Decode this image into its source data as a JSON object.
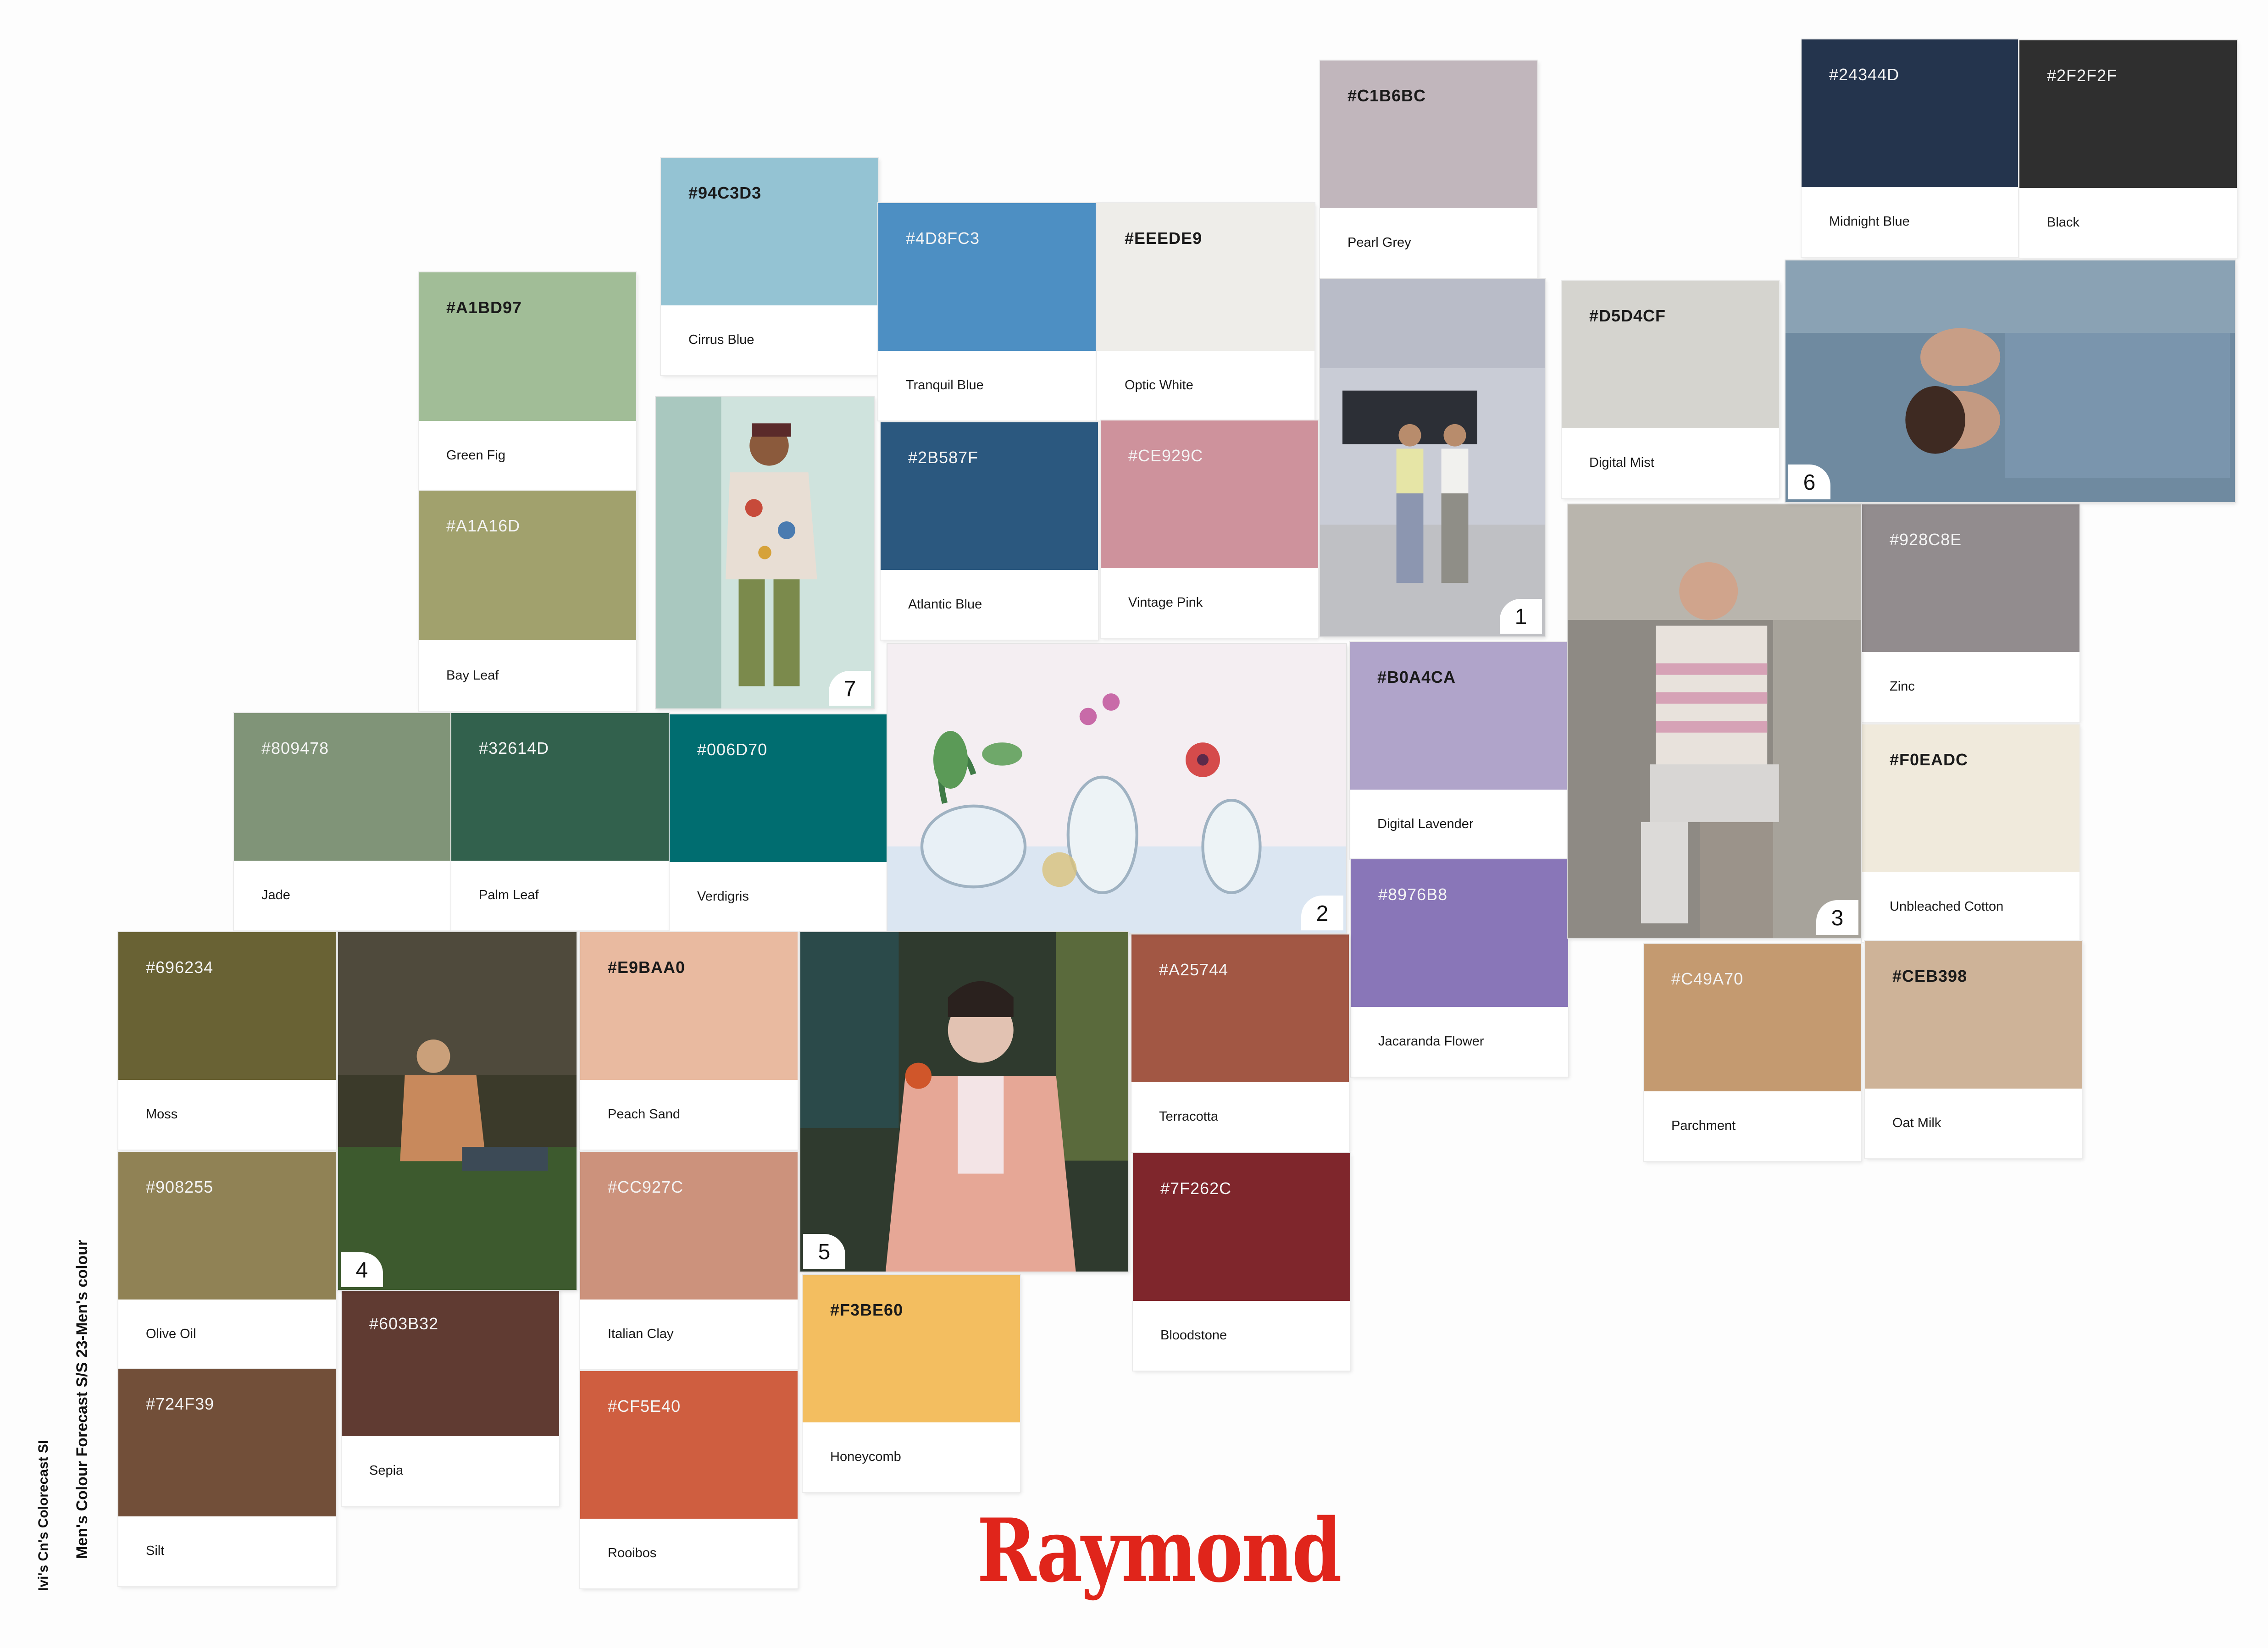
{
  "brand": {
    "logo_text": "Raymond",
    "color": "#E0251B"
  },
  "side_captions": [
    "Men's Colour Forecast S/S 23-Men's colour",
    "Ivi's Cn's Colorecast SI"
  ],
  "swatches": [
    {
      "hex": "#A1BD97",
      "name": "Green Fig",
      "text": "dark"
    },
    {
      "hex": "#A1A16D",
      "name": "Bay Leaf",
      "text": "light"
    },
    {
      "hex": "#94C3D3",
      "name": "Cirrus Blue",
      "text": "dark"
    },
    {
      "hex": "#4D8FC3",
      "name": "Tranquil Blue",
      "text": "light"
    },
    {
      "hex": "#EEEDE9",
      "name": "Optic White",
      "text": "dark"
    },
    {
      "hex": "#C1B6BC",
      "name": "Pearl Grey",
      "text": "dark"
    },
    {
      "hex": "#24344D",
      "name": "Midnight Blue",
      "text": "light"
    },
    {
      "hex": "#2F2F2F",
      "name": "Black",
      "text": "light"
    },
    {
      "hex": "#2B587F",
      "name": "Atlantic Blue",
      "text": "light"
    },
    {
      "hex": "#CE929C",
      "name": "Vintage Pink",
      "text": "light"
    },
    {
      "hex": "#D5D4CF",
      "name": "Digital Mist",
      "text": "dark"
    },
    {
      "hex": "#809478",
      "name": "Jade",
      "text": "light"
    },
    {
      "hex": "#32614D",
      "name": "Palm Leaf",
      "text": "light"
    },
    {
      "hex": "#006D70",
      "name": "Verdigris",
      "text": "light"
    },
    {
      "hex": "#B0A4CA",
      "name": "Digital Lavender",
      "text": "dark"
    },
    {
      "hex": "#928C8E",
      "name": "Zinc",
      "text": "light"
    },
    {
      "hex": "#F0EADC",
      "name": "Unbleached Cotton",
      "text": "dark"
    },
    {
      "hex": "#8976B8",
      "name": "Jacaranda Flower",
      "text": "light"
    },
    {
      "hex": "#696234",
      "name": "Moss",
      "text": "light"
    },
    {
      "hex": "#E9BAA0",
      "name": "Peach Sand",
      "text": "dark"
    },
    {
      "hex": "#A25744",
      "name": "Terracotta",
      "text": "light"
    },
    {
      "hex": "#C49A70",
      "name": "Parchment",
      "text": "light"
    },
    {
      "hex": "#CEB398",
      "name": "Oat Milk",
      "text": "dark"
    },
    {
      "hex": "#908255",
      "name": "Olive Oil",
      "text": "light"
    },
    {
      "hex": "#CC927C",
      "name": "Italian Clay",
      "text": "light"
    },
    {
      "hex": "#7F262C",
      "name": "Bloodstone",
      "text": "light"
    },
    {
      "hex": "#603B32",
      "name": "Sepia",
      "text": "light"
    },
    {
      "hex": "#724F39",
      "name": "Silt",
      "text": "light"
    },
    {
      "hex": "#F3BE60",
      "name": "Honeycomb",
      "text": "dark"
    },
    {
      "hex": "#CF5E40",
      "name": "Rooibos",
      "text": "light"
    }
  ],
  "photos": [
    {
      "label": "1"
    },
    {
      "label": "2"
    },
    {
      "label": "3"
    },
    {
      "label": "4"
    },
    {
      "label": "5"
    },
    {
      "label": "6"
    },
    {
      "label": "7"
    }
  ]
}
